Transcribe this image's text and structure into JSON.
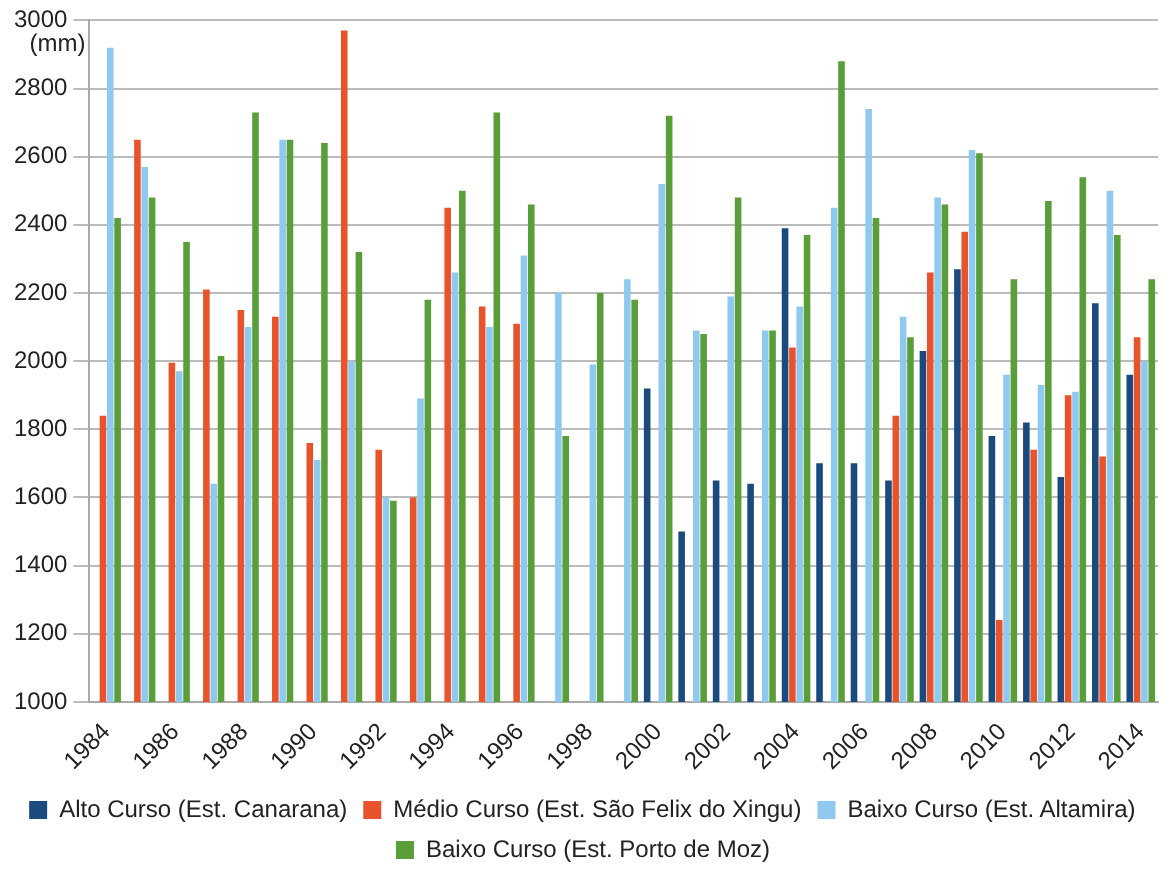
{
  "chart_data": {
    "type": "bar",
    "ylabel": "(mm)",
    "categories": [
      "1984",
      null,
      "1986",
      null,
      "1988",
      null,
      "1990",
      null,
      "1992",
      null,
      "1994",
      null,
      "1996",
      null,
      "1998",
      null,
      "2000",
      null,
      "2002",
      null,
      "2004",
      null,
      "2006",
      null,
      "2008",
      null,
      "2010",
      null,
      "2012",
      null,
      "2014"
    ],
    "series": [
      {
        "name": "Alto Curso (Est. Canarana)",
        "color": "#1a4a7e",
        "values": [
          null,
          null,
          null,
          null,
          null,
          null,
          null,
          null,
          null,
          null,
          null,
          null,
          null,
          null,
          null,
          null,
          1920,
          1500,
          1650,
          1640,
          2390,
          1700,
          1700,
          1650,
          2030,
          2270,
          1780,
          1820,
          1660,
          2170,
          1960
        ]
      },
      {
        "name": "Médio Curso (Est. São Felix do Xingu)",
        "color": "#e8532b",
        "values": [
          1840,
          2650,
          1995,
          2210,
          2150,
          2130,
          1760,
          2970,
          1740,
          1600,
          2450,
          2160,
          2110,
          null,
          null,
          null,
          null,
          null,
          null,
          null,
          2040,
          null,
          null,
          1840,
          2260,
          2380,
          1240,
          1740,
          1900,
          1720,
          2070
        ]
      },
      {
        "name": "Baixo Curso (Est. Altamira)",
        "color": "#8fc9ef",
        "values": [
          2920,
          2570,
          1970,
          1640,
          2100,
          2650,
          1710,
          2000,
          1600,
          1890,
          2260,
          2100,
          2310,
          2200,
          1990,
          2240,
          2520,
          2090,
          2190,
          2090,
          2160,
          2450,
          2740,
          2130,
          2480,
          2620,
          1960,
          1930,
          1910,
          2500,
          2000
        ]
      },
      {
        "name": "Baixo Curso (Est. Porto de Moz)",
        "color": "#5a9e3a",
        "values": [
          2420,
          2480,
          2350,
          2015,
          2730,
          2650,
          2640,
          2320,
          1590,
          2180,
          2500,
          2730,
          2460,
          1780,
          2200,
          2180,
          2720,
          2080,
          2480,
          2090,
          2370,
          2880,
          2420,
          2070,
          2460,
          2610,
          2240,
          2470,
          2540,
          2370,
          2240
        ]
      }
    ],
    "ylim": [
      1000,
      3000
    ],
    "yticks": [
      1000,
      1200,
      1400,
      1600,
      1800,
      2000,
      2200,
      2400,
      2600,
      2800,
      3000
    ],
    "grid": "y",
    "legend": "bottom"
  }
}
